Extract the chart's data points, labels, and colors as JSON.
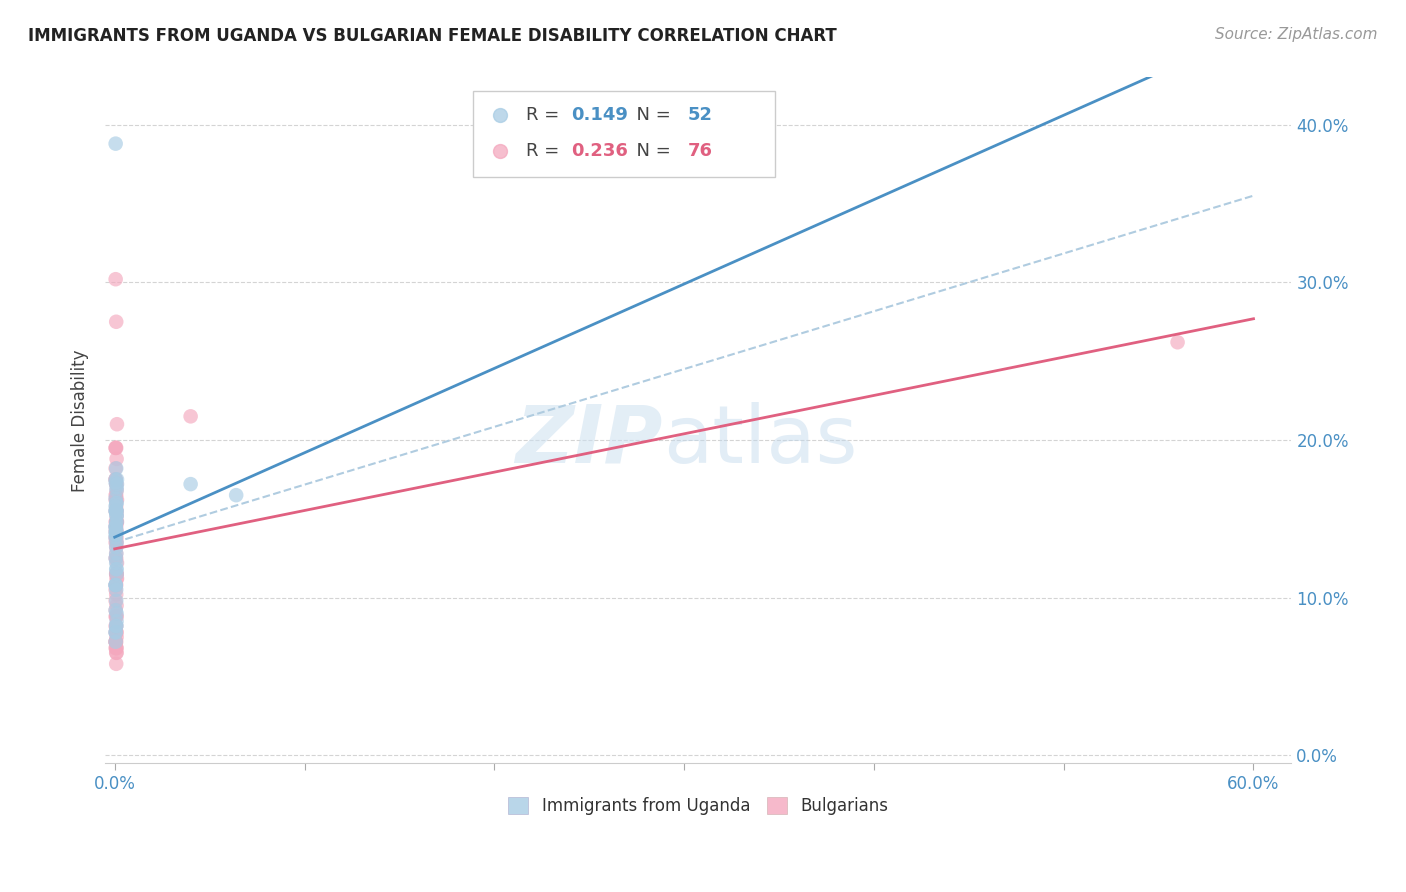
{
  "title": "IMMIGRANTS FROM UGANDA VS BULGARIAN FEMALE DISABILITY CORRELATION CHART",
  "source": "Source: ZipAtlas.com",
  "ylabel_label": "Female Disability",
  "color_blue": "#a8cce4",
  "color_pink": "#f4a8be",
  "line_blue": "#4a90c4",
  "line_pink": "#e06080",
  "dashed_line_color": "#b0cce0",
  "watermark_zip": "ZIP",
  "watermark_atlas": "atlas",
  "uganda_x": [
    0.0005,
    0.0008,
    0.0005,
    0.001,
    0.0005,
    0.0008,
    0.0008,
    0.0005,
    0.001,
    0.0008,
    0.0005,
    0.0008,
    0.0005,
    0.001,
    0.0005,
    0.0005,
    0.0008,
    0.0012,
    0.001,
    0.0008,
    0.0005,
    0.0008,
    0.0005,
    0.001,
    0.0005,
    0.0008,
    0.001,
    0.0012,
    0.001,
    0.0008,
    0.0005,
    0.0008,
    0.0005,
    0.0008,
    0.001,
    0.0005,
    0.0008,
    0.001,
    0.0005,
    0.0008,
    0.0005,
    0.001,
    0.0005,
    0.0008,
    0.001,
    0.0005,
    0.0008,
    0.0005,
    0.0005,
    0.04,
    0.001,
    0.064
  ],
  "uganda_y": [
    0.158,
    0.155,
    0.173,
    0.135,
    0.145,
    0.148,
    0.182,
    0.142,
    0.168,
    0.16,
    0.163,
    0.132,
    0.155,
    0.17,
    0.175,
    0.145,
    0.118,
    0.175,
    0.152,
    0.122,
    0.108,
    0.128,
    0.138,
    0.148,
    0.155,
    0.143,
    0.155,
    0.172,
    0.16,
    0.155,
    0.125,
    0.142,
    0.14,
    0.14,
    0.115,
    0.108,
    0.105,
    0.118,
    0.108,
    0.098,
    0.092,
    0.09,
    0.078,
    0.082,
    0.085,
    0.078,
    0.082,
    0.388,
    0.072,
    0.172,
    0.152,
    0.165
  ],
  "bulgarian_x": [
    0.0005,
    0.0008,
    0.0005,
    0.001,
    0.0005,
    0.0008,
    0.0008,
    0.0005,
    0.001,
    0.0008,
    0.0005,
    0.0008,
    0.0005,
    0.001,
    0.0005,
    0.0005,
    0.0008,
    0.0012,
    0.001,
    0.0008,
    0.0005,
    0.0008,
    0.0005,
    0.001,
    0.0005,
    0.0008,
    0.001,
    0.0012,
    0.001,
    0.0008,
    0.0005,
    0.0008,
    0.0005,
    0.0008,
    0.001,
    0.0005,
    0.0008,
    0.001,
    0.0005,
    0.0008,
    0.0005,
    0.001,
    0.0005,
    0.0008,
    0.001,
    0.0005,
    0.0008,
    0.0005,
    0.0005,
    0.04,
    0.001,
    0.001,
    0.0008,
    0.0005,
    0.0012,
    0.0008,
    0.001,
    0.0005,
    0.0008,
    0.0012,
    0.001,
    0.0008,
    0.0012,
    0.0005,
    0.0005,
    0.0008,
    0.001,
    0.0008,
    0.0005,
    0.0008,
    0.0008,
    0.001,
    0.0005,
    0.0008,
    0.56,
    0.0008
  ],
  "bulgarian_y": [
    0.155,
    0.148,
    0.135,
    0.168,
    0.175,
    0.165,
    0.145,
    0.162,
    0.148,
    0.172,
    0.138,
    0.162,
    0.195,
    0.155,
    0.125,
    0.142,
    0.195,
    0.162,
    0.142,
    0.138,
    0.145,
    0.128,
    0.165,
    0.148,
    0.182,
    0.172,
    0.152,
    0.148,
    0.135,
    0.125,
    0.175,
    0.132,
    0.195,
    0.115,
    0.115,
    0.108,
    0.115,
    0.112,
    0.105,
    0.102,
    0.088,
    0.095,
    0.078,
    0.082,
    0.088,
    0.072,
    0.275,
    0.082,
    0.072,
    0.215,
    0.068,
    0.075,
    0.155,
    0.302,
    0.21,
    0.158,
    0.188,
    0.148,
    0.138,
    0.122,
    0.115,
    0.108,
    0.112,
    0.098,
    0.092,
    0.088,
    0.078,
    0.072,
    0.068,
    0.065,
    0.058,
    0.065,
    0.072,
    0.078,
    0.262,
    0.068
  ],
  "xlim": [
    0.0,
    0.6
  ],
  "ylim": [
    0.0,
    0.42
  ],
  "yticks": [
    0.0,
    0.1,
    0.2,
    0.3,
    0.4
  ],
  "xtick_labels_shown": [
    "0.0%",
    "60.0%"
  ],
  "xtick_positions_shown": [
    0.0,
    0.6
  ],
  "xtick_positions_minor": [
    0.1,
    0.2,
    0.3,
    0.4,
    0.5
  ],
  "R_uganda": "0.149",
  "N_uganda": "52",
  "R_bulgarian": "0.236",
  "N_bulgarian": "76",
  "legend_label1": "Immigrants from Uganda",
  "legend_label2": "Bulgarians"
}
